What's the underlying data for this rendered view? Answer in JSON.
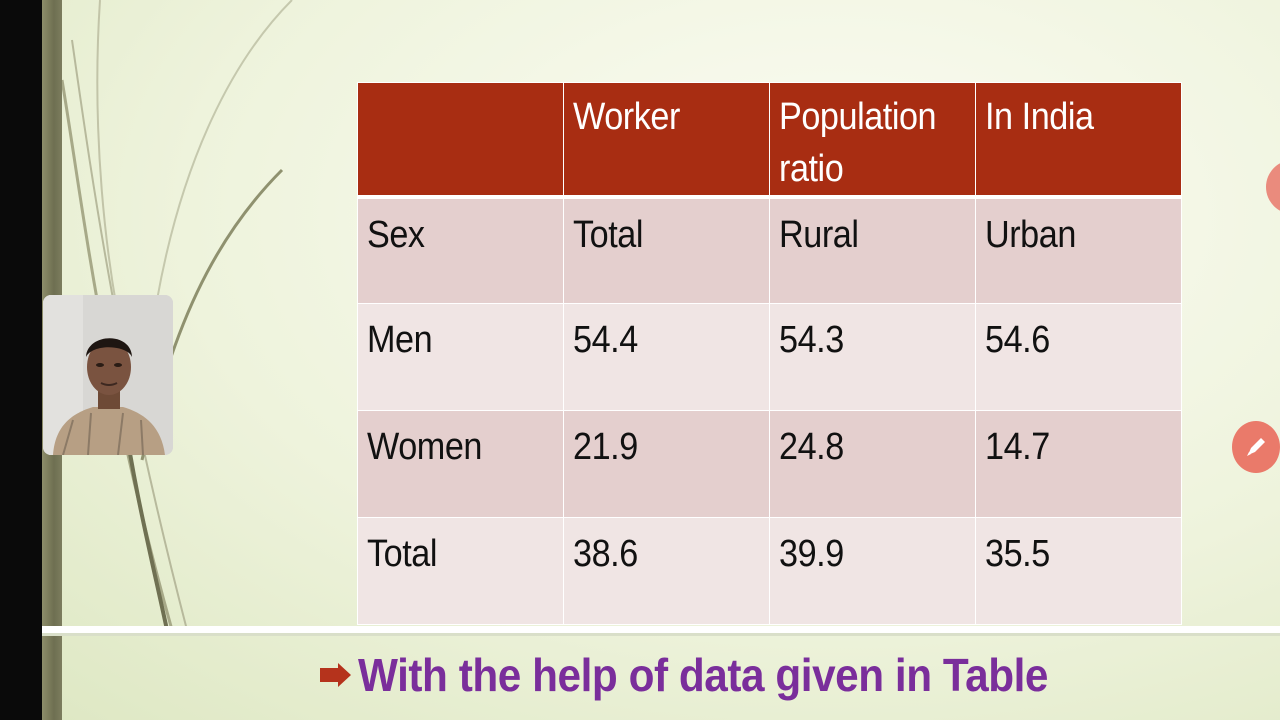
{
  "table": {
    "header": [
      "",
      "Worker",
      "Population ratio",
      "In India"
    ],
    "rows": [
      [
        "Sex",
        "Total",
        "Rural",
        "Urban"
      ],
      [
        "Men",
        "54.4",
        "54.3",
        "54.6"
      ],
      [
        "Women",
        "21.9",
        "24.8",
        "14.7"
      ],
      [
        "Total",
        "38.6",
        "39.9",
        "35.5"
      ]
    ]
  },
  "footer": {
    "bullet_icon": "arrow-bullet-icon",
    "text": "With the help of data given in Table"
  },
  "controls": {
    "pen_icon": "pen-icon"
  },
  "colors": {
    "header_bg": "#a82d12",
    "row_dark": "#e4cfce",
    "row_light": "#f0e5e4",
    "footer_text": "#7a2e9b",
    "accent_button": "#ea7a6a"
  }
}
